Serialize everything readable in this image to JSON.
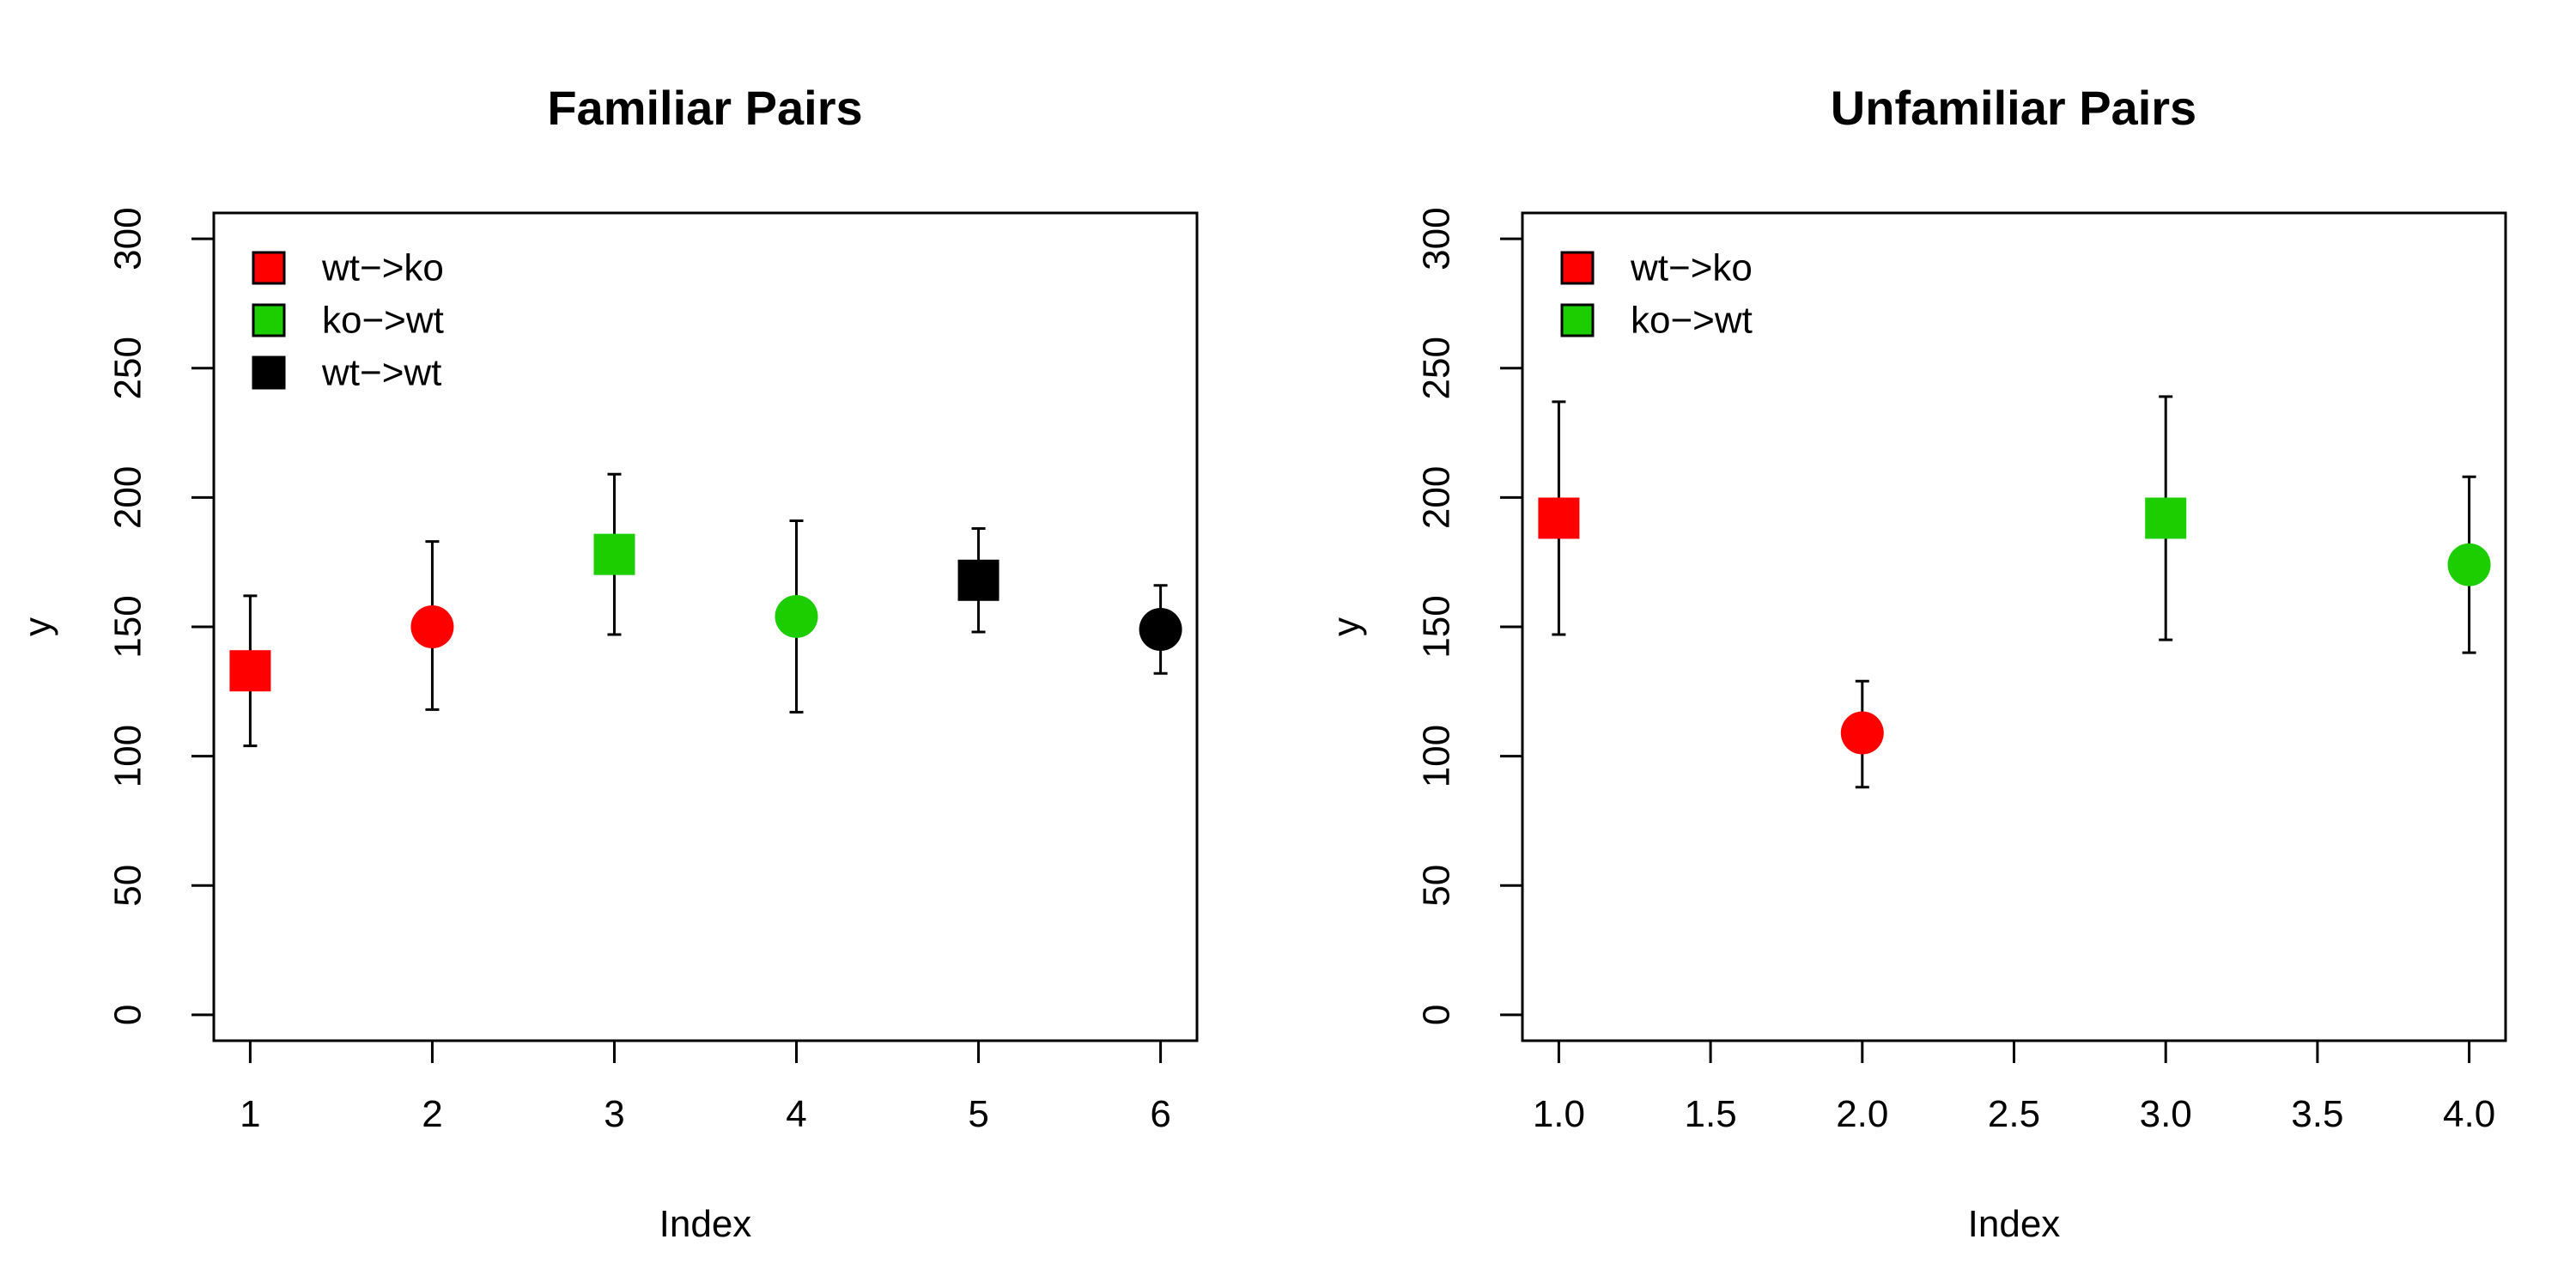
{
  "chart_data": [
    {
      "type": "scatter",
      "title": "Familiar Pairs",
      "xlabel": "Index",
      "ylabel": "y",
      "xlim": [
        0.8,
        6.2
      ],
      "ylim": [
        -10,
        310
      ],
      "xticks": [
        1,
        2,
        3,
        4,
        5,
        6
      ],
      "xtick_labels": [
        "1",
        "2",
        "3",
        "4",
        "5",
        "6"
      ],
      "yticks": [
        0,
        50,
        100,
        150,
        200,
        250,
        300
      ],
      "ytick_labels": [
        "0",
        "50",
        "100",
        "150",
        "200",
        "250",
        "300"
      ],
      "legend_placement": "top-left",
      "legend": [
        {
          "label": "wt−>ko",
          "color": "#ff0000"
        },
        {
          "label": "ko−>wt",
          "color": "#1ccd00"
        },
        {
          "label": "wt−>wt",
          "color": "#000000"
        }
      ],
      "points": [
        {
          "x": 1,
          "y": 133,
          "lower": 104,
          "upper": 162,
          "shape": "square",
          "color": "#ff0000"
        },
        {
          "x": 2,
          "y": 150,
          "lower": 118,
          "upper": 183,
          "shape": "circle",
          "color": "#ff0000"
        },
        {
          "x": 3,
          "y": 178,
          "lower": 147,
          "upper": 209,
          "shape": "square",
          "color": "#1ccd00"
        },
        {
          "x": 4,
          "y": 154,
          "lower": 117,
          "upper": 191,
          "shape": "circle",
          "color": "#1ccd00"
        },
        {
          "x": 5,
          "y": 168,
          "lower": 148,
          "upper": 188,
          "shape": "square",
          "color": "#000000"
        },
        {
          "x": 6,
          "y": 149,
          "lower": 132,
          "upper": 166,
          "shape": "circle",
          "color": "#000000"
        }
      ]
    },
    {
      "type": "scatter",
      "title": "Unfamiliar Pairs",
      "xlabel": "Index",
      "ylabel": "y",
      "xlim": [
        0.88,
        4.12
      ],
      "ylim": [
        -10,
        310
      ],
      "xticks": [
        1.0,
        1.5,
        2.0,
        2.5,
        3.0,
        3.5,
        4.0
      ],
      "xtick_labels": [
        "1.0",
        "1.5",
        "2.0",
        "2.5",
        "3.0",
        "3.5",
        "4.0"
      ],
      "yticks": [
        0,
        50,
        100,
        150,
        200,
        250,
        300
      ],
      "ytick_labels": [
        "0",
        "50",
        "100",
        "150",
        "200",
        "250",
        "300"
      ],
      "legend_placement": "top-left",
      "legend": [
        {
          "label": "wt−>ko",
          "color": "#ff0000"
        },
        {
          "label": "ko−>wt",
          "color": "#1ccd00"
        }
      ],
      "points": [
        {
          "x": 1,
          "y": 192,
          "lower": 147,
          "upper": 237,
          "shape": "square",
          "color": "#ff0000"
        },
        {
          "x": 2,
          "y": 109,
          "lower": 88,
          "upper": 129,
          "shape": "circle",
          "color": "#ff0000"
        },
        {
          "x": 3,
          "y": 192,
          "lower": 145,
          "upper": 239,
          "shape": "square",
          "color": "#1ccd00"
        },
        {
          "x": 4,
          "y": 174,
          "lower": 140,
          "upper": 208,
          "shape": "circle",
          "color": "#1ccd00"
        }
      ]
    }
  ]
}
